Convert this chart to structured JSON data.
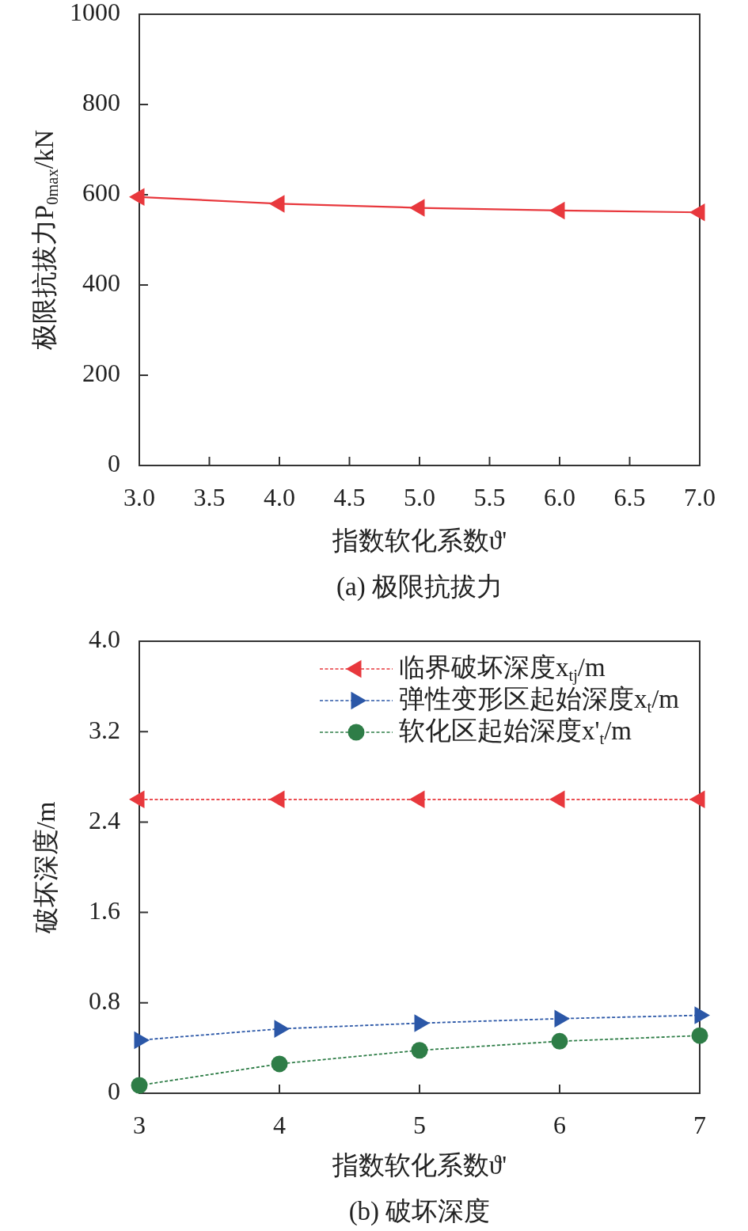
{
  "chart_data": [
    {
      "type": "line",
      "title": "(a) 极限抗拔力",
      "xlabel": "指数软化系数ϑ'",
      "ylabel": "极限抗拔力P$_{0max}$/kN",
      "x": [
        3,
        4,
        5,
        6,
        7
      ],
      "series": [
        {
          "color": "#e8383d",
          "values": [
            595,
            580,
            571,
            565,
            561
          ]
        }
      ],
      "xlim": [
        3,
        7
      ],
      "xticks": [
        {
          "value": 3,
          "label": "3.0"
        },
        {
          "value": 3.5,
          "label": "3.5"
        },
        {
          "value": 4,
          "label": "4.0"
        },
        {
          "value": 4.5,
          "label": "4.5"
        },
        {
          "value": 5,
          "label": "5.0"
        },
        {
          "value": 5.5,
          "label": "5.5"
        },
        {
          "value": 6,
          "label": "6.0"
        },
        {
          "value": 6.5,
          "label": "6.5"
        },
        {
          "value": 7,
          "label": "7.0"
        }
      ],
      "ylim": [
        0,
        1000
      ],
      "yticks": [
        0,
        200,
        400,
        600,
        800,
        1000
      ],
      "grid": false,
      "marker": "triangle",
      "line_style": "solid"
    },
    {
      "type": "line",
      "title": "(b) 破坏深度",
      "xlabel": "指数软化系数ϑ'",
      "ylabel": "破坏深度/m",
      "x": [
        3,
        4,
        5,
        6,
        7
      ],
      "series": [
        {
          "name": "临界破坏深度x$_{tj}$/m",
          "color": "#e8383d",
          "marker": "triangle",
          "values": [
            2.6,
            2.6,
            2.6,
            2.6,
            2.6
          ]
        },
        {
          "name": "弹性变形区起始深度x$_{t}$/m",
          "color": "#2b57a7",
          "marker": "triangle",
          "values": [
            0.47,
            0.57,
            0.62,
            0.66,
            0.69
          ]
        },
        {
          "name": "软化区起始深度x'$_{t}$/m",
          "color": "#2e7d47",
          "marker": "circle",
          "values": [
            0.07,
            0.26,
            0.38,
            0.46,
            0.51
          ]
        }
      ],
      "xlim": [
        3,
        7
      ],
      "xticks": [
        3,
        4,
        5,
        6,
        7
      ],
      "ylim": [
        0,
        4
      ],
      "yticks": [
        0,
        0.8,
        1.6,
        2.4,
        3.2,
        {
          "value": 4,
          "label": "4.0"
        }
      ],
      "grid": false,
      "legend": "top right",
      "line_style": "dashed"
    }
  ]
}
